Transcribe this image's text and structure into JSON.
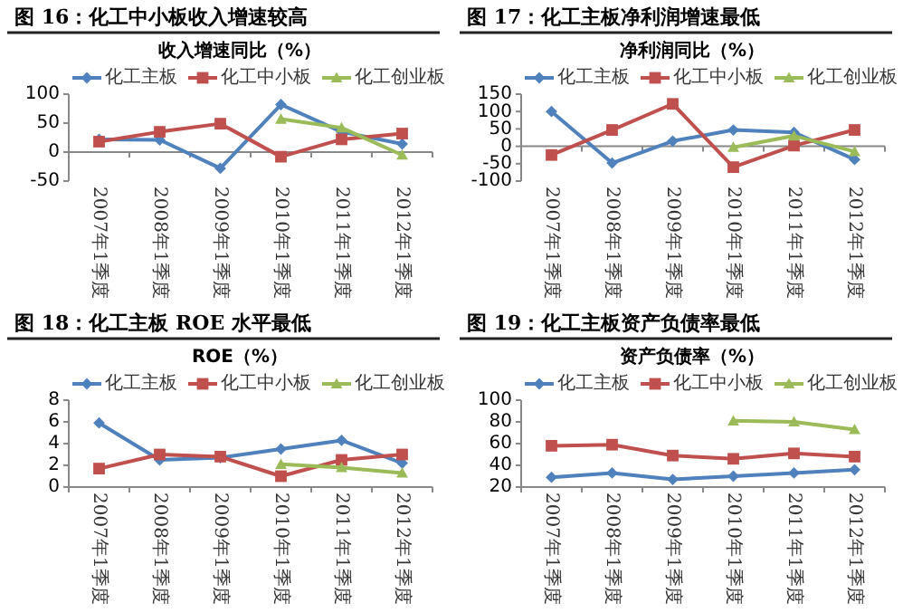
{
  "chart_data": [
    {
      "type": "line",
      "title": "图 16：化工中小板收入增速较高",
      "subtitle": "收入增速同比（%）",
      "categories": [
        "2007年1季度",
        "2008年1季度",
        "2009年1季度",
        "2010年1季度",
        "2011年1季度",
        "2012年1季度"
      ],
      "ylim": [
        -50,
        100
      ],
      "yticks": [
        -50,
        0,
        50,
        100
      ],
      "legend": "top",
      "series": [
        {
          "name": "化工主板",
          "color": "#4f81bd",
          "marker": "diamond",
          "values": [
            22,
            21,
            -28,
            82,
            35,
            14
          ]
        },
        {
          "name": "化工中小板",
          "color": "#c0504d",
          "marker": "square",
          "values": [
            18,
            35,
            49,
            -8,
            22,
            32
          ]
        },
        {
          "name": "化工创业板",
          "color": "#9bbb59",
          "marker": "triangle",
          "values": [
            null,
            null,
            null,
            57,
            42,
            -5
          ]
        }
      ]
    },
    {
      "type": "line",
      "title": "图 17：化工主板净利润增速最低",
      "subtitle": "净利润同比（%）",
      "categories": [
        "2007年1季度",
        "2008年1季度",
        "2009年1季度",
        "2010年1季度",
        "2011年1季度",
        "2012年1季度"
      ],
      "ylim": [
        -100,
        150
      ],
      "yticks": [
        -100,
        -50,
        0,
        50,
        100,
        150
      ],
      "legend": "top",
      "series": [
        {
          "name": "化工主板",
          "color": "#4f81bd",
          "marker": "diamond",
          "values": [
            100,
            -48,
            15,
            47,
            40,
            -38
          ]
        },
        {
          "name": "化工中小板",
          "color": "#c0504d",
          "marker": "square",
          "values": [
            -25,
            47,
            122,
            -60,
            2,
            47
          ]
        },
        {
          "name": "化工创业板",
          "color": "#9bbb59",
          "marker": "triangle",
          "values": [
            null,
            null,
            null,
            -3,
            30,
            -15
          ]
        }
      ]
    },
    {
      "type": "line",
      "title": "图 18：化工主板 ROE 水平最低",
      "subtitle": "ROE（%）",
      "categories": [
        "2007年1季度",
        "2008年1季度",
        "2009年1季度",
        "2010年1季度",
        "2011年1季度",
        "2012年1季度"
      ],
      "ylim": [
        0,
        8
      ],
      "yticks": [
        0,
        2,
        4,
        6,
        8
      ],
      "legend": "top",
      "series": [
        {
          "name": "化工主板",
          "color": "#4f81bd",
          "marker": "diamond",
          "values": [
            5.9,
            2.5,
            2.7,
            3.5,
            4.3,
            2.2
          ]
        },
        {
          "name": "化工中小板",
          "color": "#c0504d",
          "marker": "square",
          "values": [
            1.7,
            3.0,
            2.8,
            1.0,
            2.5,
            3.0
          ]
        },
        {
          "name": "化工创业板",
          "color": "#9bbb59",
          "marker": "triangle",
          "values": [
            null,
            null,
            null,
            2.1,
            1.8,
            1.3
          ]
        }
      ]
    },
    {
      "type": "line",
      "title": "图 19：化工主板资产负债率最低",
      "subtitle": "资产负债率（%）",
      "categories": [
        "2007年1季度",
        "2008年1季度",
        "2009年1季度",
        "2010年1季度",
        "2011年1季度",
        "2012年1季度"
      ],
      "ylim": [
        20,
        100
      ],
      "yticks": [
        20,
        40,
        60,
        80,
        100
      ],
      "legend": "top",
      "series": [
        {
          "name": "化工主板",
          "color": "#4f81bd",
          "marker": "diamond",
          "values": [
            29,
            33,
            27,
            30,
            33,
            36
          ]
        },
        {
          "name": "化工中小板",
          "color": "#c0504d",
          "marker": "square",
          "values": [
            58,
            59,
            49,
            46,
            51,
            48
          ]
        },
        {
          "name": "化工创业板",
          "color": "#9bbb59",
          "marker": "triangle",
          "values": [
            null,
            null,
            null,
            81,
            80,
            73
          ]
        }
      ]
    }
  ]
}
